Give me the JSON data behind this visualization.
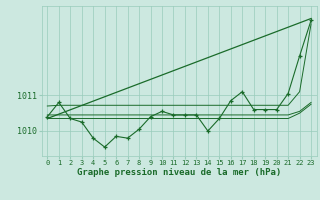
{
  "bg_color": "#cce8e0",
  "plot_bg_color": "#cce8e0",
  "grid_color": "#99ccbb",
  "line_color": "#1a6b2a",
  "title": "Graphe pression niveau de la mer (hPa)",
  "xlabel_hours": [
    0,
    1,
    2,
    3,
    4,
    5,
    6,
    7,
    8,
    9,
    10,
    11,
    12,
    13,
    14,
    15,
    16,
    17,
    18,
    19,
    20,
    21,
    22,
    23
  ],
  "yticks": [
    1010,
    1011
  ],
  "ylim": [
    1009.3,
    1013.5
  ],
  "xlim": [
    -0.5,
    23.5
  ],
  "main_line": [
    1010.4,
    1010.8,
    1010.35,
    1010.25,
    1009.8,
    1009.55,
    1009.85,
    1009.8,
    1010.05,
    1010.4,
    1010.55,
    1010.45,
    1010.45,
    1010.45,
    1010.0,
    1010.35,
    1010.85,
    1011.1,
    1010.6,
    1010.6,
    1010.6,
    1011.05,
    1012.1,
    1013.1
  ],
  "flat_line1": [
    1010.45,
    1010.45,
    1010.45,
    1010.45,
    1010.45,
    1010.45,
    1010.45,
    1010.45,
    1010.45,
    1010.45,
    1010.45,
    1010.45,
    1010.45,
    1010.45,
    1010.45,
    1010.45,
    1010.45,
    1010.45,
    1010.45,
    1010.45,
    1010.45,
    1010.45,
    1010.55,
    1010.8
  ],
  "flat_line2": [
    1010.35,
    1010.35,
    1010.35,
    1010.35,
    1010.35,
    1010.35,
    1010.35,
    1010.35,
    1010.35,
    1010.35,
    1010.35,
    1010.35,
    1010.35,
    1010.35,
    1010.35,
    1010.35,
    1010.35,
    1010.35,
    1010.35,
    1010.35,
    1010.35,
    1010.35,
    1010.5,
    1010.75
  ],
  "trend_line_x": [
    0,
    23
  ],
  "trend_line_y": [
    1010.35,
    1013.15
  ],
  "upper_line": [
    1010.7,
    1010.72,
    1010.72,
    1010.72,
    1010.72,
    1010.72,
    1010.72,
    1010.72,
    1010.72,
    1010.72,
    1010.72,
    1010.72,
    1010.72,
    1010.72,
    1010.72,
    1010.72,
    1010.72,
    1010.72,
    1010.72,
    1010.72,
    1010.72,
    1010.72,
    1011.1,
    1013.0
  ]
}
